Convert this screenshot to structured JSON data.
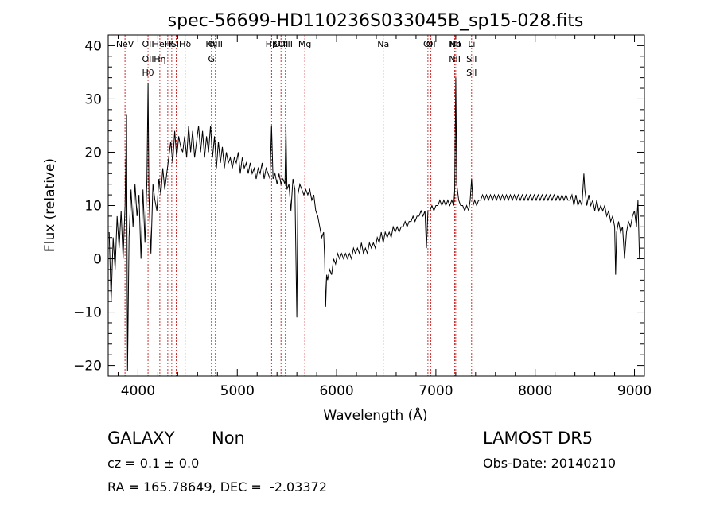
{
  "chart_data": {
    "type": "line",
    "title": "spec-56699-HD110236S033045B_sp15-028.fits",
    "xlabel": "Wavelength (Å)",
    "ylabel": "Flux (relative)",
    "xlim": [
      3700,
      9100
    ],
    "ylim": [
      -22,
      42
    ],
    "xticks": [
      4000,
      5000,
      6000,
      7000,
      8000,
      9000
    ],
    "yticks": [
      -20,
      -10,
      0,
      10,
      20,
      30,
      40
    ],
    "grid": false,
    "line_color": "#000000",
    "marker_color": "#c00000",
    "series": [
      {
        "points": [
          [
            3710,
            5
          ],
          [
            3730,
            -8
          ],
          [
            3750,
            4
          ],
          [
            3770,
            -2
          ],
          [
            3790,
            8
          ],
          [
            3810,
            2
          ],
          [
            3830,
            9
          ],
          [
            3850,
            0
          ],
          [
            3870,
            10
          ],
          [
            3885,
            27
          ],
          [
            3895,
            -21
          ],
          [
            3910,
            4
          ],
          [
            3930,
            13
          ],
          [
            3950,
            6
          ],
          [
            3970,
            14
          ],
          [
            3990,
            8
          ],
          [
            4010,
            12
          ],
          [
            4030,
            0
          ],
          [
            4050,
            13
          ],
          [
            4070,
            3
          ],
          [
            4090,
            15
          ],
          [
            4101,
            33
          ],
          [
            4110,
            12
          ],
          [
            4130,
            1
          ],
          [
            4150,
            14
          ],
          [
            4170,
            11
          ],
          [
            4190,
            9
          ],
          [
            4210,
            15
          ],
          [
            4230,
            12
          ],
          [
            4250,
            17
          ],
          [
            4270,
            13
          ],
          [
            4290,
            16
          ],
          [
            4310,
            19
          ],
          [
            4330,
            22
          ],
          [
            4350,
            18
          ],
          [
            4370,
            24
          ],
          [
            4390,
            19
          ],
          [
            4410,
            23
          ],
          [
            4430,
            21
          ],
          [
            4450,
            20
          ],
          [
            4470,
            23
          ],
          [
            4490,
            19
          ],
          [
            4510,
            25
          ],
          [
            4530,
            20
          ],
          [
            4550,
            24
          ],
          [
            4570,
            19
          ],
          [
            4590,
            22
          ],
          [
            4610,
            25
          ],
          [
            4630,
            20
          ],
          [
            4650,
            24
          ],
          [
            4670,
            19
          ],
          [
            4690,
            23
          ],
          [
            4710,
            20
          ],
          [
            4730,
            25
          ],
          [
            4750,
            19
          ],
          [
            4770,
            23
          ],
          [
            4790,
            17
          ],
          [
            4810,
            22
          ],
          [
            4830,
            18
          ],
          [
            4850,
            21
          ],
          [
            4870,
            17
          ],
          [
            4890,
            20
          ],
          [
            4910,
            18
          ],
          [
            4930,
            19
          ],
          [
            4950,
            17
          ],
          [
            4970,
            19
          ],
          [
            4990,
            18
          ],
          [
            5010,
            20
          ],
          [
            5030,
            16
          ],
          [
            5050,
            19
          ],
          [
            5070,
            17
          ],
          [
            5090,
            18
          ],
          [
            5110,
            16
          ],
          [
            5130,
            18
          ],
          [
            5150,
            16
          ],
          [
            5170,
            17
          ],
          [
            5190,
            15
          ],
          [
            5210,
            17
          ],
          [
            5230,
            16
          ],
          [
            5250,
            18
          ],
          [
            5270,
            15
          ],
          [
            5290,
            17
          ],
          [
            5310,
            16
          ],
          [
            5330,
            15
          ],
          [
            5345,
            25
          ],
          [
            5360,
            15
          ],
          [
            5380,
            16
          ],
          [
            5400,
            14
          ],
          [
            5420,
            16
          ],
          [
            5440,
            14
          ],
          [
            5460,
            15
          ],
          [
            5480,
            14
          ],
          [
            5490,
            25
          ],
          [
            5500,
            13
          ],
          [
            5520,
            14
          ],
          [
            5540,
            9
          ],
          [
            5560,
            15
          ],
          [
            5580,
            13
          ],
          [
            5600,
            -11
          ],
          [
            5610,
            12
          ],
          [
            5630,
            14
          ],
          [
            5650,
            13
          ],
          [
            5670,
            12
          ],
          [
            5690,
            13
          ],
          [
            5710,
            12
          ],
          [
            5730,
            13
          ],
          [
            5750,
            11
          ],
          [
            5770,
            12
          ],
          [
            5790,
            9
          ],
          [
            5810,
            8
          ],
          [
            5830,
            6
          ],
          [
            5850,
            4
          ],
          [
            5870,
            5
          ],
          [
            5880,
            0
          ],
          [
            5890,
            -9
          ],
          [
            5900,
            -3
          ],
          [
            5910,
            -4
          ],
          [
            5930,
            -2
          ],
          [
            5950,
            -3
          ],
          [
            5970,
            0
          ],
          [
            5990,
            -1
          ],
          [
            6010,
            1
          ],
          [
            6030,
            0
          ],
          [
            6050,
            1
          ],
          [
            6070,
            0
          ],
          [
            6090,
            1
          ],
          [
            6110,
            0
          ],
          [
            6130,
            1
          ],
          [
            6150,
            0
          ],
          [
            6170,
            2
          ],
          [
            6190,
            1
          ],
          [
            6210,
            2
          ],
          [
            6230,
            1
          ],
          [
            6250,
            3
          ],
          [
            6270,
            1
          ],
          [
            6290,
            2
          ],
          [
            6310,
            1
          ],
          [
            6330,
            3
          ],
          [
            6350,
            2
          ],
          [
            6370,
            3
          ],
          [
            6390,
            2
          ],
          [
            6410,
            4
          ],
          [
            6430,
            3
          ],
          [
            6450,
            5
          ],
          [
            6470,
            3
          ],
          [
            6490,
            5
          ],
          [
            6510,
            4
          ],
          [
            6530,
            5
          ],
          [
            6550,
            4
          ],
          [
            6570,
            6
          ],
          [
            6590,
            5
          ],
          [
            6610,
            6
          ],
          [
            6630,
            5
          ],
          [
            6650,
            6
          ],
          [
            6670,
            6
          ],
          [
            6690,
            7
          ],
          [
            6710,
            6
          ],
          [
            6730,
            7
          ],
          [
            6750,
            7
          ],
          [
            6770,
            8
          ],
          [
            6790,
            7
          ],
          [
            6810,
            8
          ],
          [
            6830,
            8
          ],
          [
            6850,
            9
          ],
          [
            6870,
            8
          ],
          [
            6890,
            9
          ],
          [
            6905,
            2
          ],
          [
            6920,
            9
          ],
          [
            6940,
            9
          ],
          [
            6960,
            10
          ],
          [
            6980,
            9
          ],
          [
            7000,
            10
          ],
          [
            7020,
            10
          ],
          [
            7040,
            11
          ],
          [
            7060,
            10
          ],
          [
            7080,
            11
          ],
          [
            7100,
            10
          ],
          [
            7120,
            11
          ],
          [
            7140,
            10
          ],
          [
            7160,
            11
          ],
          [
            7180,
            10
          ],
          [
            7190,
            13
          ],
          [
            7200,
            34
          ],
          [
            7210,
            14
          ],
          [
            7230,
            11
          ],
          [
            7250,
            10
          ],
          [
            7270,
            10
          ],
          [
            7290,
            9
          ],
          [
            7310,
            10
          ],
          [
            7330,
            9
          ],
          [
            7345,
            11
          ],
          [
            7360,
            15
          ],
          [
            7375,
            10
          ],
          [
            7390,
            11
          ],
          [
            7410,
            10
          ],
          [
            7430,
            11
          ],
          [
            7450,
            11
          ],
          [
            7470,
            12
          ],
          [
            7490,
            11
          ],
          [
            7510,
            12
          ],
          [
            7530,
            11
          ],
          [
            7550,
            12
          ],
          [
            7570,
            11
          ],
          [
            7590,
            12
          ],
          [
            7610,
            11
          ],
          [
            7630,
            12
          ],
          [
            7650,
            11
          ],
          [
            7670,
            12
          ],
          [
            7690,
            11
          ],
          [
            7710,
            12
          ],
          [
            7730,
            11
          ],
          [
            7750,
            12
          ],
          [
            7770,
            11
          ],
          [
            7790,
            12
          ],
          [
            7810,
            11
          ],
          [
            7830,
            12
          ],
          [
            7850,
            11
          ],
          [
            7870,
            12
          ],
          [
            7890,
            11
          ],
          [
            7910,
            12
          ],
          [
            7930,
            11
          ],
          [
            7950,
            12
          ],
          [
            7970,
            11
          ],
          [
            7990,
            12
          ],
          [
            8010,
            11
          ],
          [
            8030,
            12
          ],
          [
            8050,
            11
          ],
          [
            8070,
            12
          ],
          [
            8090,
            11
          ],
          [
            8110,
            12
          ],
          [
            8130,
            11
          ],
          [
            8150,
            12
          ],
          [
            8170,
            11
          ],
          [
            8190,
            12
          ],
          [
            8210,
            11
          ],
          [
            8230,
            12
          ],
          [
            8250,
            11
          ],
          [
            8270,
            12
          ],
          [
            8290,
            11
          ],
          [
            8310,
            12
          ],
          [
            8330,
            11
          ],
          [
            8350,
            11
          ],
          [
            8370,
            12
          ],
          [
            8390,
            10
          ],
          [
            8410,
            12
          ],
          [
            8430,
            10
          ],
          [
            8450,
            11
          ],
          [
            8470,
            10
          ],
          [
            8490,
            16
          ],
          [
            8500,
            13
          ],
          [
            8520,
            10
          ],
          [
            8540,
            12
          ],
          [
            8560,
            10
          ],
          [
            8580,
            11
          ],
          [
            8600,
            9
          ],
          [
            8620,
            11
          ],
          [
            8640,
            9
          ],
          [
            8660,
            10
          ],
          [
            8680,
            9
          ],
          [
            8700,
            10
          ],
          [
            8720,
            8
          ],
          [
            8740,
            9
          ],
          [
            8760,
            7
          ],
          [
            8780,
            8
          ],
          [
            8800,
            6
          ],
          [
            8810,
            -3
          ],
          [
            8820,
            5
          ],
          [
            8840,
            7
          ],
          [
            8860,
            5
          ],
          [
            8880,
            6
          ],
          [
            8900,
            0
          ],
          [
            8920,
            5
          ],
          [
            8940,
            7
          ],
          [
            8960,
            6
          ],
          [
            8980,
            8
          ],
          [
            9000,
            9
          ],
          [
            9020,
            6
          ],
          [
            9035,
            11
          ],
          [
            9050,
            0
          ]
        ]
      }
    ],
    "line_markers": [
      {
        "x": 3869,
        "labels": [
          "NeV"
        ]
      },
      {
        "x": 4101,
        "labels": [
          "OII",
          "OII",
          "Hθ"
        ]
      },
      {
        "x": 4220,
        "labels": [
          "HeI",
          "Hη"
        ]
      },
      {
        "x": 4300,
        "labels": [
          "H"
        ]
      },
      {
        "x": 4340,
        "labels": [
          "K"
        ]
      },
      {
        "x": 4385,
        "labels": [
          "SII"
        ]
      },
      {
        "x": 4475,
        "labels": [
          "Hδ"
        ]
      },
      {
        "x": 4740,
        "labels": [
          "Hγ",
          "G"
        ]
      },
      {
        "x": 4780,
        "labels": [
          "OIII"
        ]
      },
      {
        "x": 5345,
        "labels": [
          "Hβ"
        ]
      },
      {
        "x": 5440,
        "labels": [
          "OIII"
        ]
      },
      {
        "x": 5485,
        "labels": [
          "OIII"
        ]
      },
      {
        "x": 5680,
        "labels": [
          "Mg"
        ]
      },
      {
        "x": 6470,
        "labels": [
          "Na"
        ]
      },
      {
        "x": 6950,
        "labels": [
          "OI"
        ]
      },
      {
        "x": 6920,
        "labels": [
          "OI"
        ]
      },
      {
        "x": 7190,
        "labels": [
          "NII",
          "NII"
        ]
      },
      {
        "x": 7200,
        "labels": [
          "Hα"
        ]
      },
      {
        "x": 7360,
        "labels": [
          "Li",
          "SII",
          "SII"
        ]
      }
    ]
  },
  "info": {
    "object_class": "GALAXY",
    "subclass": "Non",
    "survey": "LAMOST DR5",
    "redshift": "cz = 0.1 ± 0.0",
    "obs_date": "Obs-Date: 20140210",
    "coords": "RA = 165.78649, DEC =  -2.03372"
  }
}
